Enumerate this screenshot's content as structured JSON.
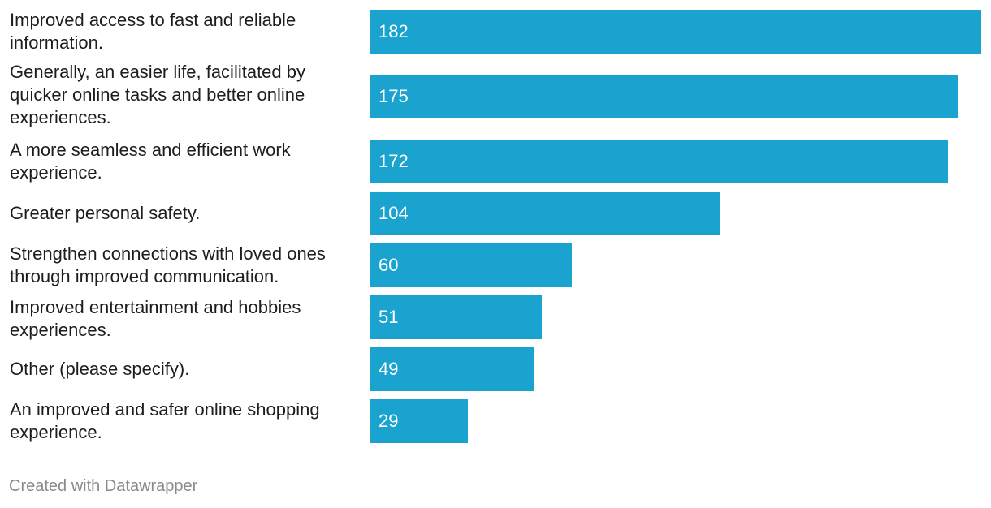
{
  "chart_data": {
    "type": "bar",
    "orientation": "horizontal",
    "title": "",
    "xlabel": "",
    "ylabel": "",
    "categories": [
      "Improved access to fast and reliable information.",
      "Generally, an easier life, facilitated by quicker online tasks and better online experiences.",
      "A more seamless and efficient work experience.",
      "Greater personal safety.",
      "Strengthen connections with loved ones through improved communication.",
      "Improved entertainment and hobbies experiences.",
      "Other (please specify).",
      "An improved and safer online shopping experience."
    ],
    "values": [
      182,
      175,
      172,
      104,
      60,
      51,
      49,
      29
    ],
    "xlim": [
      0,
      182
    ],
    "grid": false,
    "data_labels": "inside-left",
    "bar_color": "#1aa3cf",
    "label_color": "#ffffff"
  },
  "footer": {
    "credit": "Created with Datawrapper"
  }
}
